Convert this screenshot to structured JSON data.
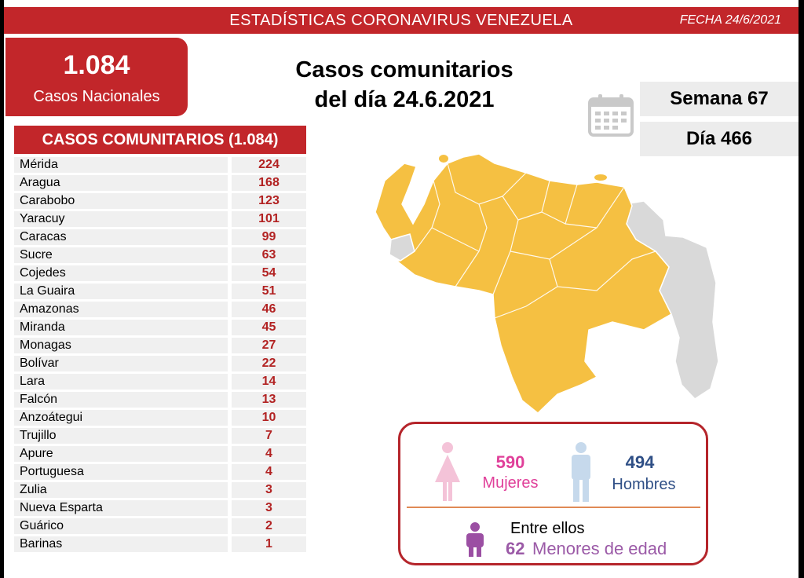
{
  "header": {
    "title": "ESTADÍSTICAS CORONAVIRUS VENEZUELA",
    "date": "FECHA 24/6/2021"
  },
  "national": {
    "count": "1.084",
    "label": "Casos Nacionales"
  },
  "headline": {
    "line1": "Casos comunitarios",
    "line2": "del día 24.6.2021"
  },
  "week": "Semana 67",
  "day": "Día 466",
  "table": {
    "title": "CASOS COMUNITARIOS (1.084)",
    "rows": [
      {
        "state": "Mérida",
        "cases": "224"
      },
      {
        "state": "Aragua",
        "cases": "168"
      },
      {
        "state": "Carabobo",
        "cases": "123"
      },
      {
        "state": "Yaracuy",
        "cases": "101"
      },
      {
        "state": "Caracas",
        "cases": "99"
      },
      {
        "state": "Sucre",
        "cases": "63"
      },
      {
        "state": "Cojedes",
        "cases": "54"
      },
      {
        "state": "La Guaira",
        "cases": "51"
      },
      {
        "state": "Amazonas",
        "cases": "46"
      },
      {
        "state": "Miranda",
        "cases": "45"
      },
      {
        "state": "Monagas",
        "cases": "27"
      },
      {
        "state": "Bolívar",
        "cases": "22"
      },
      {
        "state": "Lara",
        "cases": "14"
      },
      {
        "state": "Falcón",
        "cases": "13"
      },
      {
        "state": "Anzoátegui",
        "cases": "10"
      },
      {
        "state": "Trujillo",
        "cases": "7"
      },
      {
        "state": "Apure",
        "cases": "4"
      },
      {
        "state": "Portuguesa",
        "cases": "4"
      },
      {
        "state": "Zulia",
        "cases": "3"
      },
      {
        "state": "Nueva Esparta",
        "cases": "3"
      },
      {
        "state": "Guárico",
        "cases": "2"
      },
      {
        "state": "Barinas",
        "cases": "1"
      }
    ]
  },
  "gender": {
    "women_count": "590",
    "women_label": "Mujeres",
    "men_count": "494",
    "men_label": "Hombres",
    "between_label": "Entre ellos",
    "minors_count": "62",
    "minors_label": "Menores de edad"
  },
  "icons": {
    "calendar": "calendar-icon",
    "female": "female-icon",
    "male": "male-icon",
    "child": "child-icon"
  },
  "colors": {
    "accent_red": "#c2262a",
    "map_active": "#f5c042",
    "map_inactive": "#d9d9d9",
    "women": "#e0409a",
    "men": "#2f4f86",
    "minors": "#9b5aa7"
  }
}
